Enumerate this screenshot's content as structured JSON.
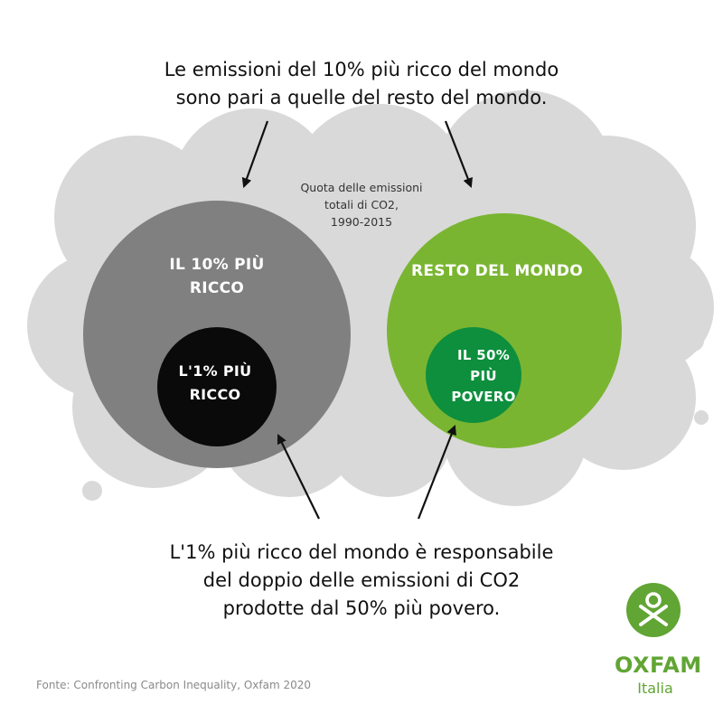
{
  "headline_top": {
    "line1": "Le emissioni del 10% più ricco del mondo",
    "line2": "sono pari a quelle del resto del mondo."
  },
  "subtitle": {
    "line1": "Quota delle emissioni",
    "line2": "totali di CO2,",
    "line3": "1990-2015"
  },
  "groups": {
    "top10": {
      "line1": "IL 10% PIÙ",
      "line2": "RICCO"
    },
    "top1": {
      "line1": "L'1% PIÙ",
      "line2": "RICCO"
    },
    "rest": {
      "line1": "RESTO DEL MONDO"
    },
    "bottom50": {
      "line1": "IL 50%",
      "line2": "PIÙ",
      "line3": "POVERO"
    }
  },
  "headline_bottom": {
    "line1": "L'1% più ricco del mondo è responsabile",
    "line2": "del doppio delle emissioni di CO2",
    "line3": "prodotte dal 50% più povero."
  },
  "source": "Fonte: Confronting Carbon Inequality, Oxfam 2020",
  "brand": {
    "name": "OXFAM",
    "sub": "Italia"
  },
  "colors": {
    "cloud": "#d9d9d9",
    "top10": "#808080",
    "top1": "#0a0a0a",
    "rest": "#7ab532",
    "bottom50": "#0d8f3d",
    "brand": "#61a534"
  },
  "icons": [
    "arrow-icon",
    "oxfam-logo-icon"
  ]
}
